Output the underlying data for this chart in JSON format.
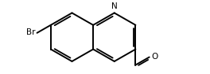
{
  "background": "#ffffff",
  "line_color": "#000000",
  "line_width": 1.4,
  "font_size": 7.5,
  "br_label": "Br",
  "n_label": "N",
  "o_label": "O",
  "figsize": [
    2.64,
    0.94
  ],
  "dpi": 100,
  "xlim": [
    -1.8,
    4.5
  ],
  "ylim": [
    -1.5,
    1.5
  ]
}
